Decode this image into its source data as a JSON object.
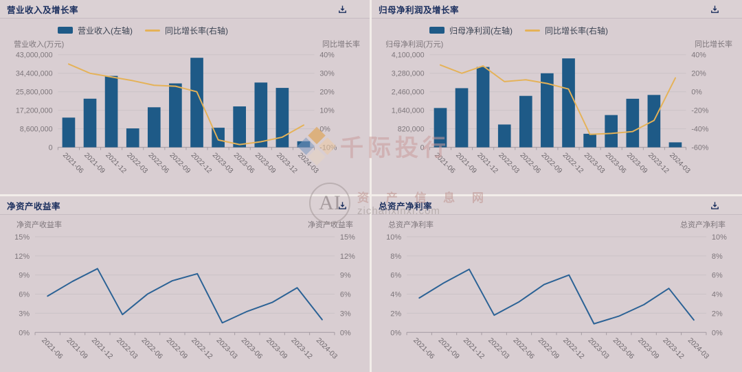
{
  "colors": {
    "bar": "#1e5a87",
    "gold_line": "#e5b257",
    "blue_line": "#2b6295",
    "grid": "#cbc2c6",
    "axis": "#a39aa1",
    "panel_bg": "#d9ced2",
    "title_text": "#1b2f5e"
  },
  "watermarks": {
    "brand_text": "千际投行",
    "center_logo": "AI",
    "center_cn": "资 产 信 息 网",
    "center_url": "zichanxinxi.com"
  },
  "chart_data": [
    {
      "type": "bar",
      "title": "营业收入及增长率",
      "categories": [
        "2021-06",
        "2021-09",
        "2021-12",
        "2022-03",
        "2022-06",
        "2022-09",
        "2022-12",
        "2023-03",
        "2023-06",
        "2023-09",
        "2023-12",
        "2024-03"
      ],
      "series": [
        {
          "name": "营业收入(左轴)",
          "type": "bar",
          "axis": "left",
          "values": [
            13800000,
            22600000,
            33200000,
            8800000,
            18600000,
            29700000,
            41600000,
            9100000,
            19000000,
            30100000,
            27600000,
            2800000
          ]
        },
        {
          "name": "同比增长率(右轴)",
          "type": "line",
          "axis": "right",
          "values": [
            35,
            30,
            28,
            26,
            23.5,
            23,
            20,
            -6,
            -8.5,
            -7,
            -4.5,
            2
          ]
        }
      ],
      "left_axis": {
        "label": "营业收入(万元)",
        "min": 0,
        "max": 43000000,
        "ticks": [
          "43,000,000",
          "34,400,000",
          "25,800,000",
          "17,200,000",
          "8,600,000",
          "0"
        ]
      },
      "right_axis": {
        "label": "同比增长率",
        "min": -10,
        "max": 40,
        "ticks": [
          "40%",
          "30%",
          "20%",
          "10%",
          "0%",
          "-10%"
        ]
      },
      "legend_position": "top-left",
      "grid": true
    },
    {
      "type": "bar",
      "title": "归母净利润及增长率",
      "categories": [
        "2021-06",
        "2021-09",
        "2021-12",
        "2022-03",
        "2022-06",
        "2022-09",
        "2022-12",
        "2023-03",
        "2023-06",
        "2023-09",
        "2023-12",
        "2024-03"
      ],
      "series": [
        {
          "name": "归母净利润(左轴)",
          "type": "bar",
          "axis": "left",
          "values": [
            1740000,
            2620000,
            3560000,
            1010000,
            2280000,
            3280000,
            3940000,
            600000,
            1430000,
            2150000,
            2320000,
            220000
          ]
        },
        {
          "name": "同比增长率(右轴)",
          "type": "line",
          "axis": "right",
          "values": [
            29,
            20,
            28,
            11,
            13,
            9,
            3,
            -46,
            -45,
            -43,
            -31,
            15
          ]
        }
      ],
      "left_axis": {
        "label": "归母净利润(万元)",
        "min": 0,
        "max": 4100000,
        "ticks": [
          "4,100,000",
          "3,280,000",
          "2,460,000",
          "1,640,000",
          "820,000",
          "0"
        ]
      },
      "right_axis": {
        "label": "同比增长率",
        "min": -60,
        "max": 40,
        "ticks": [
          "40%",
          "20%",
          "0%",
          "-20%",
          "-40%",
          "-60%"
        ]
      },
      "legend_position": "top-left",
      "grid": true
    },
    {
      "type": "line",
      "title": "净资产收益率",
      "categories": [
        "2021-06",
        "2021-09",
        "2021-12",
        "2022-03",
        "2022-06",
        "2022-09",
        "2022-12",
        "2023-03",
        "2023-06",
        "2023-09",
        "2023-12",
        "2024-03"
      ],
      "series": [
        {
          "name": "净资产收益率",
          "type": "line",
          "axis": "left",
          "values": [
            5.7,
            8.0,
            10.0,
            2.8,
            6.0,
            8.1,
            9.2,
            1.5,
            3.3,
            4.7,
            7.0,
            2.0
          ]
        }
      ],
      "left_axis": {
        "label": "净资产收益率",
        "min": 0,
        "max": 15,
        "ticks": [
          "15%",
          "12%",
          "9%",
          "6%",
          "3%",
          "0%"
        ]
      },
      "right_axis": {
        "label": "净资产收益率",
        "min": 0,
        "max": 15,
        "ticks": [
          "15%",
          "12%",
          "9%",
          "6%",
          "3%",
          "0%"
        ]
      },
      "legend_position": "none",
      "grid": true
    },
    {
      "type": "line",
      "title": "总资产净利率",
      "categories": [
        "2021-06",
        "2021-09",
        "2021-12",
        "2022-03",
        "2022-06",
        "2022-09",
        "2022-12",
        "2023-03",
        "2023-06",
        "2023-09",
        "2023-12",
        "2024-03"
      ],
      "series": [
        {
          "name": "总资产净利率",
          "type": "line",
          "axis": "left",
          "values": [
            3.6,
            5.2,
            6.6,
            1.8,
            3.2,
            5.0,
            6.0,
            0.9,
            1.7,
            2.9,
            4.6,
            1.3
          ]
        }
      ],
      "left_axis": {
        "label": "总资产净利率",
        "min": 0,
        "max": 10,
        "ticks": [
          "10%",
          "8%",
          "6%",
          "4%",
          "2%",
          "0%"
        ]
      },
      "right_axis": {
        "label": "总资产净利率",
        "min": 0,
        "max": 10,
        "ticks": [
          "10%",
          "8%",
          "6%",
          "4%",
          "2%",
          "0%"
        ]
      },
      "legend_position": "none",
      "grid": true
    }
  ]
}
